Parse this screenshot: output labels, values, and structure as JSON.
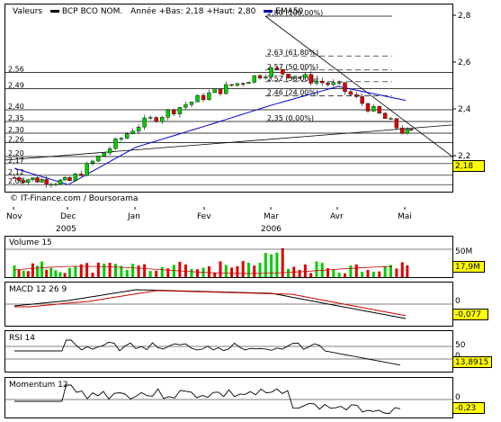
{
  "header": {
    "label": "Valeurs",
    "series_name": "BCP BCO NOM.",
    "stats": "Année +Bas: 2,18 +Haut: 2,80",
    "ema_label": "EMA50",
    "ema_color": "#0000cc"
  },
  "credit": "© IT-Finance.com / Boursorama",
  "last_price_tag": "2,18",
  "x_axis": {
    "months": [
      "Nov",
      "Dec",
      "Jan",
      "Fev",
      "Mar",
      "Avr",
      "Mai"
    ],
    "years": [
      "2005",
      "2006"
    ]
  },
  "price_axis": {
    "ticks": [
      "2,8",
      "2,6",
      "2,4",
      "2,2"
    ],
    "range": [
      2.05,
      2.85
    ]
  },
  "level_labels": [
    "2,56",
    "2,49",
    "2,40",
    "2,35",
    "2,30",
    "2,26",
    "2,20",
    "2,17",
    "2,12",
    "2,08"
  ],
  "fibonacci": [
    {
      "label": "2,80 (100,00%)",
      "value": 2.8
    },
    {
      "label": "2,63 (61,80%)",
      "value": 2.63
    },
    {
      "label": "2,57 (50,00%)",
      "value": 2.57
    },
    {
      "label": "2,52 (38,00%)",
      "value": 2.52
    },
    {
      "label": "2,46 (24,00%)",
      "value": 2.46
    },
    {
      "label": "2,35 (0,00%)",
      "value": 2.35
    }
  ],
  "volume": {
    "title": "Volume 15",
    "axis_label": "50M",
    "tag": "17,9M"
  },
  "macd": {
    "title": "MACD 12 26 9",
    "axis_label": "0",
    "tag": "-0,077"
  },
  "rsi": {
    "title": "RSI 14",
    "axis_labels": [
      "50",
      "0"
    ],
    "tag": "13,8915"
  },
  "momentum": {
    "title": "Momentum 12",
    "axis_label": "0",
    "tag": "-0,23"
  },
  "chart_data": {
    "type": "line",
    "title": "BCP BCO NOM.",
    "x": [
      "2005-11",
      "2005-12",
      "2006-01",
      "2006-02",
      "2006-03",
      "2006-04",
      "2006-05"
    ],
    "series": [
      {
        "name": "BCP BCO NOM.",
        "values": [
          2.11,
          2.09,
          2.33,
          2.46,
          2.57,
          2.5,
          2.3
        ]
      },
      {
        "name": "EMA50",
        "values": [
          2.15,
          2.08,
          2.24,
          2.33,
          2.42,
          2.5,
          2.44
        ]
      }
    ],
    "ylim": [
      2.05,
      2.85
    ],
    "grid": true
  }
}
